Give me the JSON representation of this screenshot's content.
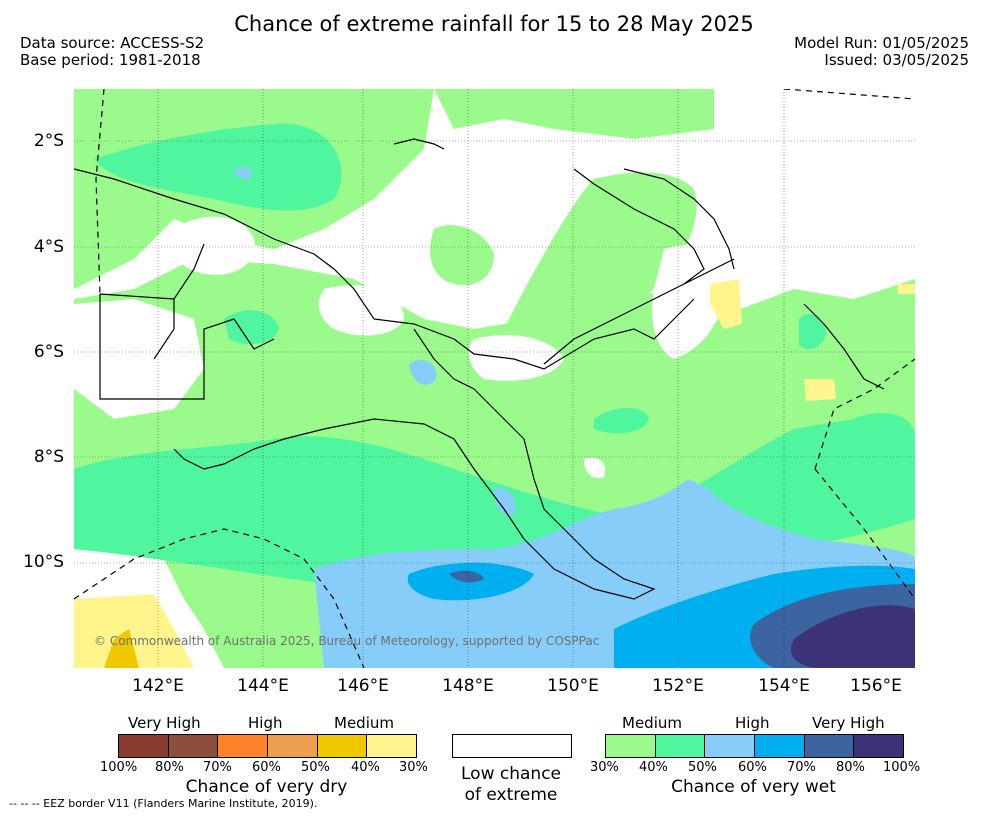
{
  "title": "Chance of extreme rainfall for 15 to 28 May 2025",
  "data_source": "Data source: ACCESS-S2",
  "base_period": "Base period: 1981-2018",
  "model_run": "Model Run: 01/05/2025",
  "issued": "Issued: 03/05/2025",
  "copyright": "© Commonwealth of Australia 2025, Bureau of Meteorology, supported by COSPPac",
  "lat_labels": [
    "2°S",
    "4°S",
    "6°S",
    "8°S",
    "10°S"
  ],
  "lon_labels": [
    "142°E",
    "144°E",
    "146°E",
    "148°E",
    "150°E",
    "152°E",
    "154°E",
    "156°E"
  ],
  "dry_legend": {
    "categories": [
      "Very High",
      "High",
      "Medium"
    ],
    "colors": [
      "#8b3a2f",
      "#8b4e3b",
      "#ff8228",
      "#eea050",
      "#f0c800",
      "#fff58c"
    ],
    "ticks": [
      "100%",
      "80%",
      "70%",
      "60%",
      "50%",
      "40%",
      "30%"
    ],
    "caption": "Chance of very dry"
  },
  "low_legend": {
    "caption_line1": "Low chance",
    "caption_line2": "of extreme",
    "color": "#ffffff"
  },
  "wet_legend": {
    "categories": [
      "Medium",
      "High",
      "Very High"
    ],
    "colors": [
      "#9afa8c",
      "#50f5a0",
      "#87cdfa",
      "#00aff0",
      "#3c64a0",
      "#3c3278"
    ],
    "ticks": [
      "30%",
      "40%",
      "50%",
      "60%",
      "70%",
      "80%",
      "100%"
    ],
    "caption": "Chance of very wet"
  },
  "eez_note": "-- -- -- EEZ border V11 (Flanders Marine Institute, 2019)."
}
